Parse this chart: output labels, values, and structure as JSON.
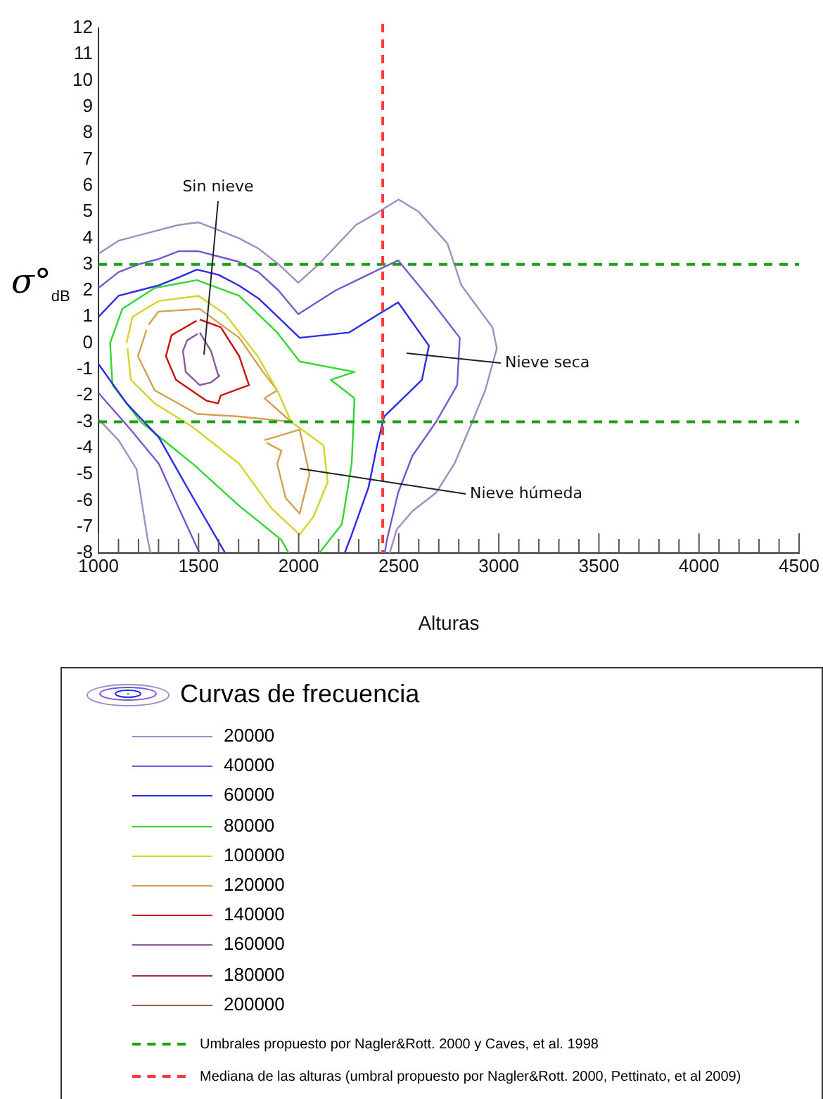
{
  "chart_data": {
    "type": "line",
    "xlabel": "Alturas",
    "ylabel": "σ°$_{dB}$",
    "legend_title": "Curvas de frecuencia",
    "legend": "bottom",
    "marker": "none",
    "line_style": "solid",
    "grid": false,
    "xlim": [
      1000,
      4500
    ],
    "ylim": [
      -8,
      12
    ],
    "xticks": [
      1000,
      {
        "value": 1100,
        "label": null
      },
      {
        "value": 1200,
        "label": null
      },
      {
        "value": 1300,
        "label": null
      },
      {
        "value": 1400,
        "label": null
      },
      1500,
      {
        "value": 1600,
        "label": null
      },
      {
        "value": 1700,
        "label": null
      },
      {
        "value": 1800,
        "label": null
      },
      {
        "value": 1900,
        "label": null
      },
      2000,
      {
        "value": 2100,
        "label": null
      },
      {
        "value": 2200,
        "label": null
      },
      {
        "value": 2300,
        "label": null
      },
      {
        "value": 2400,
        "label": null
      },
      2500,
      {
        "value": 2600,
        "label": null
      },
      {
        "value": 2700,
        "label": null
      },
      {
        "value": 2800,
        "label": null
      },
      {
        "value": 2900,
        "label": null
      },
      3000,
      {
        "value": 3100,
        "label": null
      },
      {
        "value": 3200,
        "label": null
      },
      {
        "value": 3300,
        "label": null
      },
      {
        "value": 3400,
        "label": null
      },
      3500,
      {
        "value": 3600,
        "label": null
      },
      {
        "value": 3700,
        "label": null
      },
      {
        "value": 3800,
        "label": null
      },
      {
        "value": 3900,
        "label": null
      },
      4000,
      {
        "value": 4100,
        "label": null
      },
      {
        "value": 4200,
        "label": null
      },
      {
        "value": 4300,
        "label": null
      },
      {
        "value": 4400,
        "label": null
      },
      4500
    ],
    "yticks": [
      -8,
      -7,
      -6,
      -5,
      -4,
      -3,
      -2,
      -1,
      0,
      1,
      2,
      3,
      4,
      5,
      6,
      7,
      8,
      9,
      10,
      11,
      12
    ],
    "series": [
      {
        "name": "20000",
        "color": "#a58cc0",
        "x": [
          1000,
          1100,
          1200,
          1300,
          1400,
          1500,
          1600,
          1700,
          1800,
          1900,
          1998,
          2100,
          2286,
          2400,
          2499,
          2600,
          2743,
          2813,
          2968,
          2990,
          2932,
          2862,
          2778,
          2687,
          2569,
          2490,
          2455,
          null,
          1000,
          1100,
          1190,
          1246,
          1260
        ],
        "values": [
          3.4,
          3.9,
          4.1,
          4.3,
          4.5,
          4.6,
          4.3,
          4.0,
          3.6,
          3.0,
          2.3,
          3.0,
          4.5,
          5.0,
          5.47,
          5.0,
          3.8,
          2.2,
          0.6,
          -0.2,
          -1.8,
          -3.1,
          -4.6,
          -5.7,
          -6.4,
          -7.1,
          -8,
          null,
          -2.9,
          -3.7,
          -4.8,
          -7.5,
          -8
        ]
      },
      {
        "name": "40000",
        "color": "#7a55d0",
        "x": [
          1000,
          1100,
          1200,
          1300,
          1400,
          1500,
          1600,
          1700,
          1800,
          1900,
          1998,
          2183,
          2400,
          2497,
          2664,
          2805,
          2792,
          2687,
          2568,
          2497,
          2441,
          2430,
          null,
          1000,
          1150,
          1302,
          1408,
          1505
        ],
        "values": [
          2.1,
          2.7,
          3.0,
          3.2,
          3.5,
          3.5,
          3.3,
          3.1,
          2.7,
          2.0,
          1.1,
          2.0,
          2.8,
          3.15,
          1.6,
          0.2,
          -1.6,
          -3.0,
          -4.3,
          -5.7,
          -7.5,
          -8,
          null,
          -1.9,
          -3.2,
          -4.6,
          -6.4,
          -8
        ]
      },
      {
        "name": "60000",
        "color": "#2a2ae8",
        "x": [
          1000,
          1100,
          1200,
          1300,
          1400,
          1492,
          1600,
          1700,
          1800,
          2005,
          2251,
          2400,
          2497,
          2651,
          2616,
          2427,
          2392,
          2349,
          2265,
          2230,
          null,
          1000,
          1141,
          1302,
          1443,
          1633
        ],
        "values": [
          1.0,
          1.8,
          2.0,
          2.2,
          2.5,
          2.8,
          2.6,
          2.2,
          1.7,
          0.2,
          0.4,
          1.1,
          1.55,
          -0.1,
          -1.4,
          -2.8,
          -3.9,
          -5.5,
          -7.3,
          -8,
          null,
          -0.8,
          -2.3,
          -3.6,
          -5.5,
          -8
        ]
      },
      {
        "name": "80000",
        "color": "#33d633",
        "x": [
          1950,
          1914,
          1703,
          1471,
          1211,
          1070,
          1058,
          1119,
          1281,
          1492,
          1703,
          1893,
          2005,
          2279,
          2160,
          2279,
          2265,
          2216,
          2103
        ],
        "values": [
          -8,
          -7.5,
          -6.2,
          -4.6,
          -3.0,
          -1.6,
          0,
          1.3,
          2.1,
          2.4,
          1.8,
          0.4,
          -0.7,
          -1.1,
          -1.4,
          -2.1,
          -4.6,
          -6.9,
          -8
        ]
      },
      {
        "name": "100000",
        "color": "#d4d42a",
        "x": [
          1140,
          1170,
          1300,
          1500,
          1633,
          1795,
          1893,
          1963,
          2124,
          2145,
          2075,
          2005,
          1865,
          1703,
          1471,
          1281,
          1162,
          1145
        ],
        "values": [
          0,
          1.0,
          1.6,
          1.8,
          1.1,
          -0.5,
          -1.8,
          -3.0,
          -3.9,
          -5.3,
          -6.6,
          -7.3,
          -6.3,
          -4.6,
          -3.2,
          -2.3,
          -1.4,
          -0.2
        ]
      },
      {
        "name": "120000",
        "color": "#d4a050",
        "x": [
          1250,
          1300,
          1506,
          1703,
          1822,
          1893,
          1829,
          1963,
          1703,
          1492,
          1281,
          1197,
          1240,
          null,
          1829,
          2005,
          2054,
          2005,
          1935,
          1893,
          1914,
          1840
        ],
        "values": [
          0.7,
          1.2,
          1.3,
          0.2,
          -1.1,
          -1.8,
          -2.1,
          -3.0,
          -2.8,
          -2.7,
          -1.8,
          -0.5,
          0.5,
          null,
          -3.7,
          -3.3,
          -5.0,
          -6.5,
          -5.9,
          -4.6,
          -4.1,
          -3.8
        ]
      },
      {
        "name": "140000",
        "color": "#cc1010",
        "x": [
          1506,
          1611,
          1703,
          1752,
          1611,
          1597,
          1541,
          1387,
          1337,
          1365,
          1490
        ],
        "values": [
          0.9,
          0.6,
          -0.5,
          -1.6,
          -2.0,
          -2.3,
          -2.2,
          -1.4,
          -0.5,
          0.3,
          0.85
        ]
      },
      {
        "name": "160000",
        "color": "#8a5a9a",
        "x": [
          1506,
          1562,
          1597,
          1604,
          1562,
          1506,
          1436,
          1422,
          1443,
          1495
        ],
        "values": [
          0.4,
          -0.3,
          -1.2,
          -1.25,
          -1.5,
          -1.6,
          -1.1,
          -0.3,
          0.1,
          0.35
        ]
      },
      {
        "name": "180000",
        "color": "#a03050"
      },
      {
        "name": "200000",
        "color": "#a05858"
      }
    ],
    "ref_lines": [
      {
        "axis": "y",
        "value": 3,
        "label": "Umbrales propuesto por Nagler&Rott. 2000 y Caves, et al. 1998",
        "color": "#1aa01a",
        "line_style": "dashed"
      },
      {
        "axis": "y",
        "value": -3,
        "color": "#1aa01a",
        "line_style": "dashed"
      },
      {
        "axis": "x",
        "value": 2420,
        "label": "Mediana de las alturas (umbral propuesto por Nagler&Rott. 2000, Pettinato, et al 2009)",
        "color": "#ff3838",
        "line_style": "dashed"
      }
    ],
    "annotations": [
      "Sin nieve",
      "Nieve seca",
      "Nieve húmeda"
    ]
  }
}
